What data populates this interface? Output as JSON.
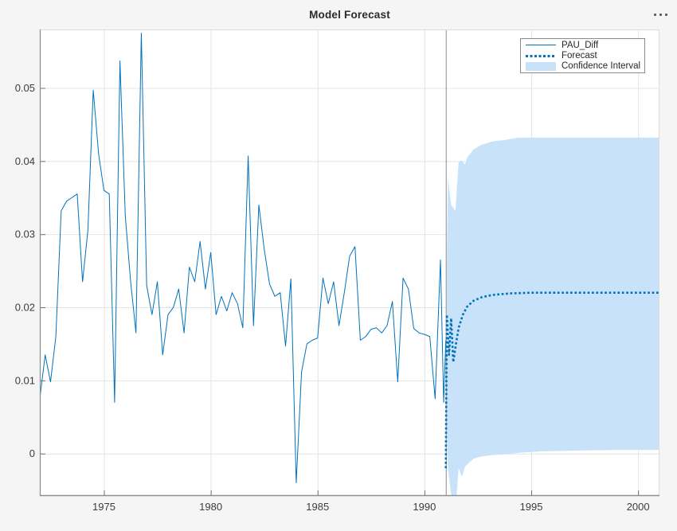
{
  "figure": {
    "title": "Model Forecast",
    "icons": {
      "more_options": "ellipsis"
    },
    "background_color": "#F5F5F5"
  },
  "chart_data": {
    "type": "line",
    "title": "Model Forecast",
    "xlabel": "",
    "ylabel": "",
    "xlim": [
      1972,
      2001
    ],
    "ylim": [
      -0.0058,
      0.058
    ],
    "grid": true,
    "x_tick_values": [
      1975,
      1980,
      1985,
      1990,
      1995,
      2000
    ],
    "x_tick_labels": [
      "1975",
      "1980",
      "1985",
      "1990",
      "1995",
      "2000"
    ],
    "y_tick_values": [
      0,
      0.01,
      0.02,
      0.03,
      0.04,
      0.05
    ],
    "y_tick_labels": [
      "0",
      "0.01",
      "0.02",
      "0.03",
      "0.04",
      "0.05"
    ],
    "forecast_start_line_x": 1991,
    "colors": {
      "line": "#0072BD",
      "forecast": "#0072BD",
      "band": "#C8E3F9",
      "grid": "#E4E4E4",
      "axis": "#8F8F8F",
      "box_light": "#DCDCDC",
      "tick_text": "#3C3C3C",
      "vline": "#8A8A8A",
      "plot_bg": "#FFFFFF"
    },
    "legend": {
      "position": "northeast",
      "entries": [
        {
          "label": "PAU_Diff",
          "style": "solid-line"
        },
        {
          "label": "Forecast",
          "style": "dotted-line"
        },
        {
          "label": "Confidence Interval",
          "style": "patch"
        }
      ]
    },
    "series": [
      {
        "name": "PAU_Diff",
        "style": "solid",
        "line_width": 1,
        "x": [
          1972.0,
          1972.25,
          1972.5,
          1972.75,
          1973.0,
          1973.25,
          1973.5,
          1973.75,
          1974.0,
          1974.25,
          1974.5,
          1974.75,
          1975.0,
          1975.25,
          1975.5,
          1975.75,
          1976.0,
          1976.25,
          1976.5,
          1976.75,
          1977.0,
          1977.25,
          1977.5,
          1977.75,
          1978.0,
          1978.25,
          1978.5,
          1978.75,
          1979.0,
          1979.25,
          1979.5,
          1979.75,
          1980.0,
          1980.25,
          1980.5,
          1980.75,
          1981.0,
          1981.25,
          1981.5,
          1981.75,
          1982.0,
          1982.25,
          1982.5,
          1982.75,
          1983.0,
          1983.25,
          1983.5,
          1983.75,
          1984.0,
          1984.25,
          1984.5,
          1984.75,
          1985.0,
          1985.25,
          1985.5,
          1985.75,
          1986.0,
          1986.25,
          1986.5,
          1986.75,
          1987.0,
          1987.25,
          1987.5,
          1987.75,
          1988.0,
          1988.25,
          1988.5,
          1988.75,
          1989.0,
          1989.25,
          1989.5,
          1989.75,
          1990.0,
          1990.25,
          1990.5,
          1990.75,
          1990.9,
          1991.0
        ],
        "y": [
          0.0075,
          0.0135,
          0.0098,
          0.016,
          0.0332,
          0.0345,
          0.035,
          0.0355,
          0.0235,
          0.0305,
          0.0497,
          0.041,
          0.036,
          0.0355,
          0.007,
          0.0537,
          0.0325,
          0.0235,
          0.0165,
          0.0575,
          0.023,
          0.019,
          0.0235,
          0.0135,
          0.019,
          0.02,
          0.0225,
          0.0165,
          0.0255,
          0.0235,
          0.029,
          0.0225,
          0.0275,
          0.019,
          0.0215,
          0.0195,
          0.022,
          0.0205,
          0.0172,
          0.0407,
          0.0175,
          0.034,
          0.028,
          0.0232,
          0.0215,
          0.022,
          0.0147,
          0.0239,
          -0.004,
          0.0112,
          0.015,
          0.0155,
          0.0158,
          0.024,
          0.0205,
          0.0235,
          0.0175,
          0.022,
          0.027,
          0.0283,
          0.0155,
          0.016,
          0.017,
          0.0172,
          0.0165,
          0.0175,
          0.0208,
          0.0098,
          0.024,
          0.0225,
          0.0171,
          0.0165,
          0.0163,
          0.016,
          0.0075,
          0.0265,
          0.007,
          0.0155
        ]
      },
      {
        "name": "Forecast",
        "style": "dotted",
        "line_width": 2.6,
        "x": [
          1991.0,
          1991.05,
          1991.15,
          1991.25,
          1991.35,
          1991.45,
          1991.6,
          1991.8,
          1992.0,
          1992.3,
          1992.7,
          1993.2,
          1994.0,
          1995.0,
          1996.5,
          1998.0,
          2000.0,
          2001.0
        ],
        "y": [
          -0.002,
          0.019,
          0.0135,
          0.0185,
          0.0125,
          0.0145,
          0.0172,
          0.019,
          0.0201,
          0.0209,
          0.0214,
          0.0217,
          0.0219,
          0.022,
          0.022,
          0.022,
          0.022,
          0.022
        ]
      }
    ],
    "confidence_interval": {
      "name": "Confidence Interval",
      "x": [
        1991.05,
        1991.1,
        1991.25,
        1991.45,
        1991.6,
        1991.75,
        1991.9,
        1992.0,
        1992.3,
        1992.65,
        1993.2,
        1993.8,
        1994.4,
        1995.5,
        1997.0,
        1999.0,
        2001.0
      ],
      "upper": [
        0.0265,
        0.0378,
        0.034,
        0.0332,
        0.0399,
        0.0401,
        0.0395,
        0.0405,
        0.0416,
        0.0422,
        0.0427,
        0.0429,
        0.0432,
        0.0432,
        0.0432,
        0.0432,
        0.0432
      ],
      "lower": [
        0.004,
        -0.002,
        -0.0055,
        -0.008,
        -0.002,
        -0.0032,
        -0.0018,
        -0.0015,
        -0.0007,
        -0.0004,
        -0.0002,
        -0.0001,
        0.0001,
        0.0003,
        0.0004,
        0.0005,
        0.0005
      ]
    }
  }
}
